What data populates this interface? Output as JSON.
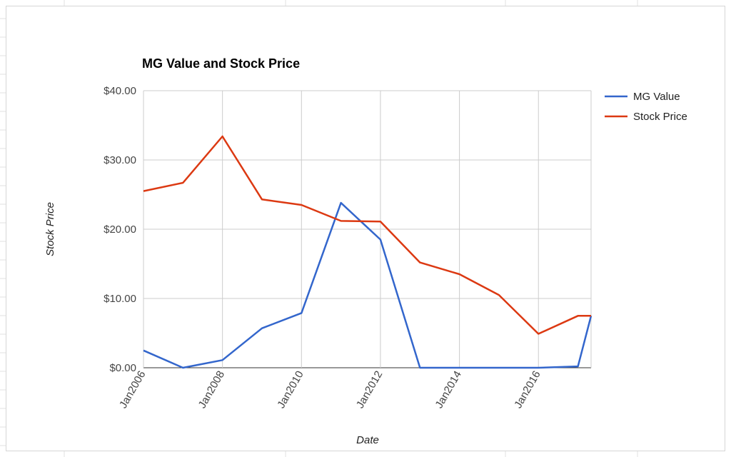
{
  "chart_data": {
    "type": "line",
    "title": "MG Value and Stock Price",
    "xlabel": "Date",
    "ylabel": "Stock Price",
    "ylim": [
      0,
      40
    ],
    "y_ticks": [
      "$0.00",
      "$10.00",
      "$20.00",
      "$30.00",
      "$40.00"
    ],
    "y_tick_values": [
      0,
      10,
      20,
      30,
      40
    ],
    "x_ticks": [
      "Jan2006",
      "Jan2008",
      "Jan2010",
      "Jan2012",
      "Jan2014",
      "Jan2016"
    ],
    "x_tick_values": [
      "2006-01",
      "2008-01",
      "2010-01",
      "2012-01",
      "2014-01",
      "2016-01"
    ],
    "xlim": [
      "2006-01",
      "2017-05"
    ],
    "grid": true,
    "legend_position": "right",
    "x": [
      "2006-01",
      "2007-01",
      "2008-01",
      "2009-01",
      "2010-01",
      "2011-01",
      "2012-01",
      "2013-01",
      "2014-01",
      "2015-01",
      "2016-01",
      "2017-01",
      "2017-05"
    ],
    "series": [
      {
        "name": "MG Value",
        "color": "#3366cc",
        "values": [
          2.5,
          0,
          1.1,
          5.7,
          7.9,
          23.8,
          18.5,
          0,
          0,
          0,
          0,
          0.2,
          7.5
        ]
      },
      {
        "name": "Stock Price",
        "color": "#dc3912",
        "values": [
          25.5,
          26.7,
          33.4,
          24.3,
          23.5,
          21.2,
          21.1,
          15.2,
          13.5,
          10.5,
          4.9,
          7.5,
          7.5
        ]
      }
    ]
  }
}
